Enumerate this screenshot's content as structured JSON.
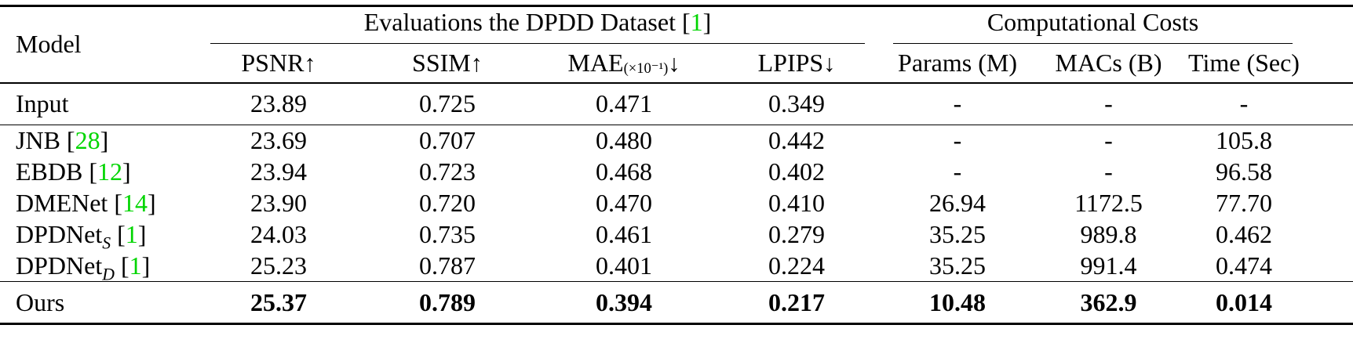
{
  "colors": {
    "citation": "#00d500",
    "text": "#000000",
    "background": "#ffffff"
  },
  "table": {
    "model_header": "Model",
    "group1": {
      "text_before": "Evaluations the DPDD Dataset [",
      "cite": "1",
      "text_after": "]"
    },
    "group2": "Computational Costs",
    "columns": [
      {
        "main": "PSNR",
        "small": "",
        "arrow": "↑"
      },
      {
        "main": "SSIM",
        "small": "",
        "arrow": "↑"
      },
      {
        "main": "MAE",
        "small": "(×10⁻¹)",
        "arrow": "↓"
      },
      {
        "main": "LPIPS",
        "small": "",
        "arrow": "↓"
      },
      {
        "main": "Params (M)",
        "small": "",
        "arrow": ""
      },
      {
        "main": "MACs (B)",
        "small": "",
        "arrow": ""
      },
      {
        "main": "Time (Sec)",
        "small": "",
        "arrow": ""
      }
    ],
    "rows": [
      {
        "model": {
          "name": "Input",
          "sub": "",
          "cite": ""
        },
        "values": [
          "23.89",
          "0.725",
          "0.471",
          "0.349",
          "-",
          "-",
          "-"
        ],
        "bold": false,
        "rule_below": true
      },
      {
        "model": {
          "name": "JNB",
          "sub": "",
          "cite": "28"
        },
        "values": [
          "23.69",
          "0.707",
          "0.480",
          "0.442",
          "-",
          "-",
          "105.8"
        ],
        "bold": false,
        "rule_below": false
      },
      {
        "model": {
          "name": "EBDB",
          "sub": "",
          "cite": "12"
        },
        "values": [
          "23.94",
          "0.723",
          "0.468",
          "0.402",
          "-",
          "-",
          "96.58"
        ],
        "bold": false,
        "rule_below": false
      },
      {
        "model": {
          "name": "DMENet",
          "sub": "",
          "cite": "14"
        },
        "values": [
          "23.90",
          "0.720",
          "0.470",
          "0.410",
          "26.94",
          "1172.5",
          "77.70"
        ],
        "bold": false,
        "rule_below": false
      },
      {
        "model": {
          "name": "DPDNet",
          "sub": "S",
          "cite": "1"
        },
        "values": [
          "24.03",
          "0.735",
          "0.461",
          "0.279",
          "35.25",
          "989.8",
          "0.462"
        ],
        "bold": false,
        "rule_below": false
      },
      {
        "model": {
          "name": "DPDNet",
          "sub": "D",
          "cite": "1"
        },
        "values": [
          "25.23",
          "0.787",
          "0.401",
          "0.224",
          "35.25",
          "991.4",
          "0.474"
        ],
        "bold": false,
        "rule_below": true
      },
      {
        "model": {
          "name": "Ours",
          "sub": "",
          "cite": ""
        },
        "values": [
          "25.37",
          "0.789",
          "0.394",
          "0.217",
          "10.48",
          "362.9",
          "0.014"
        ],
        "bold": true,
        "rule_below": false
      }
    ]
  }
}
